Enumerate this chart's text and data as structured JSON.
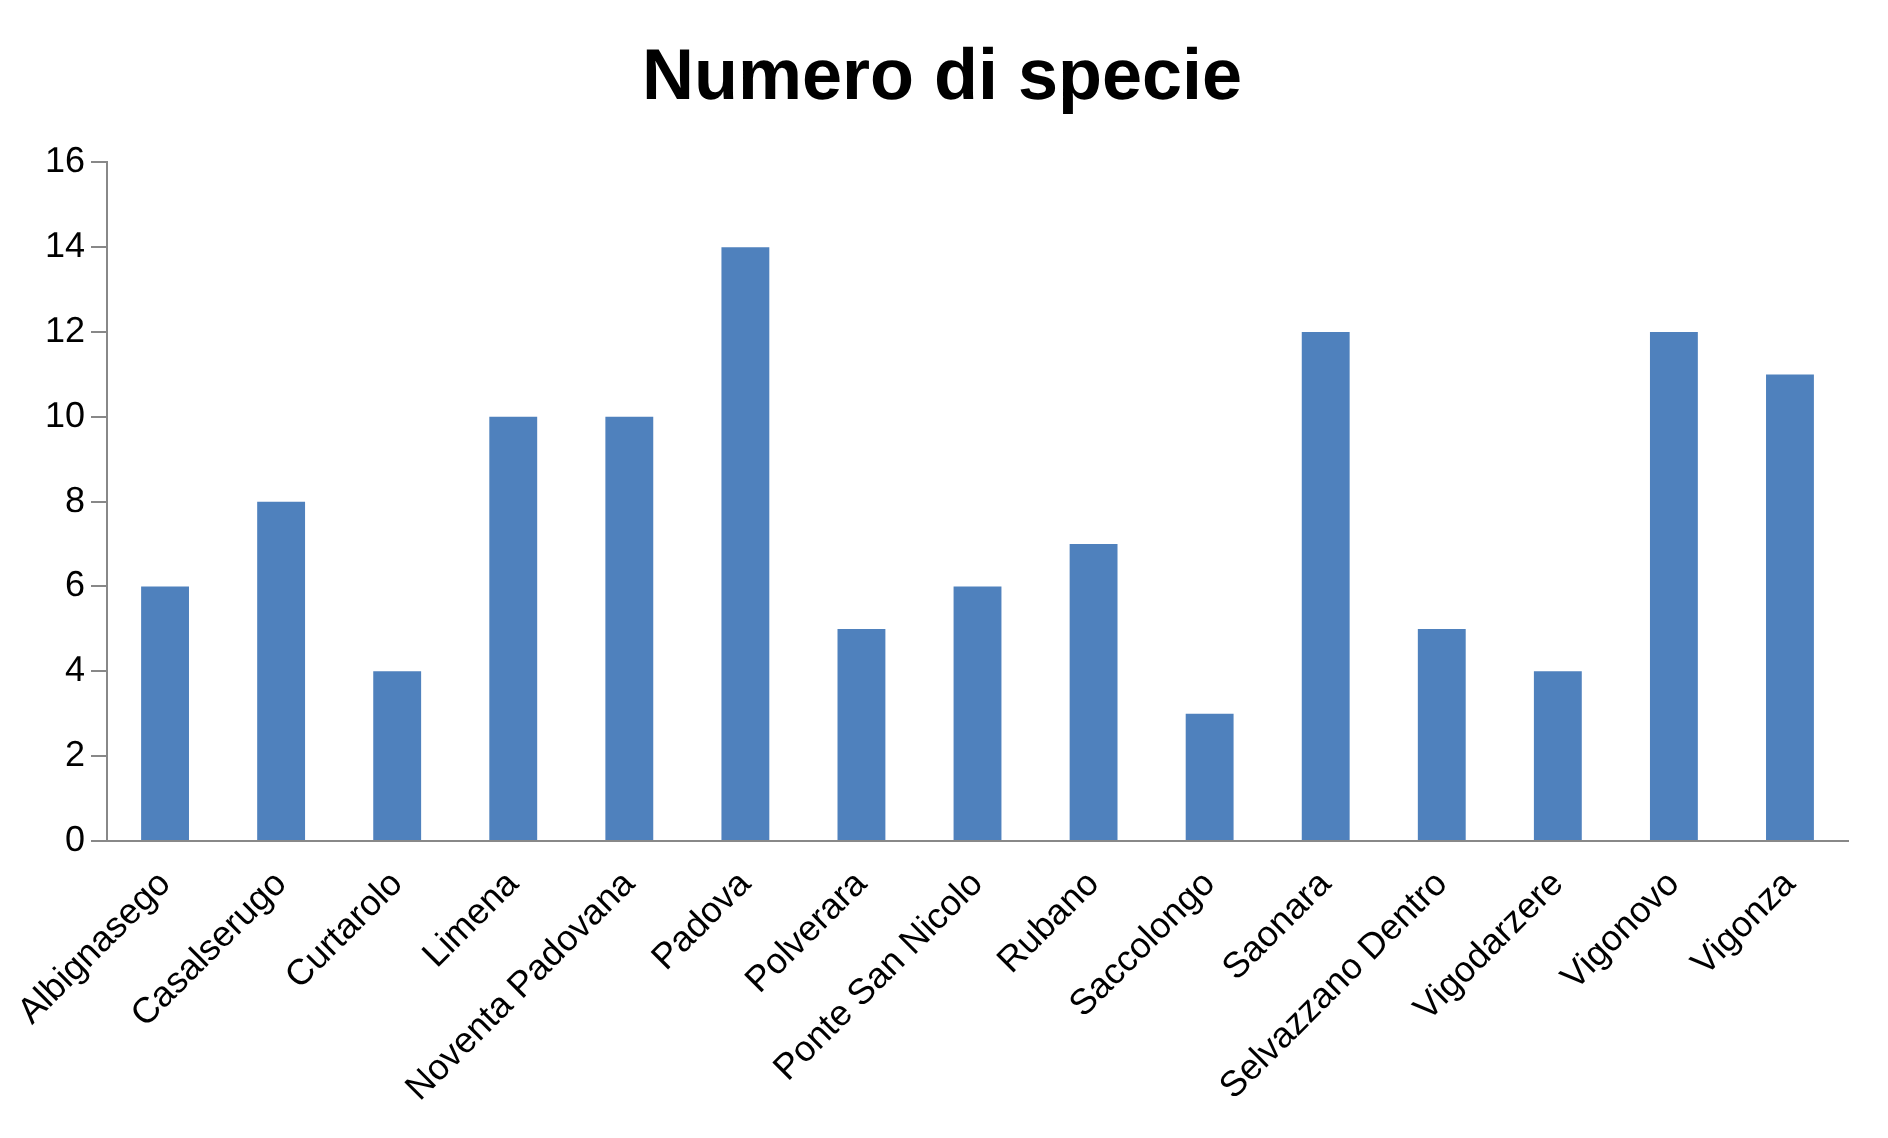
{
  "chart_data": {
    "type": "bar",
    "title": "Numero di specie",
    "categories": [
      "Albignasego",
      "Casalserugo",
      "Curtarolo",
      "Limena",
      "Noventa Padovana",
      "Padova",
      "Polverara",
      "Ponte San Nicolo",
      "Rubano",
      "Saccolongo",
      "Saonara",
      "Selvazzano Dentro",
      "Vigodarzere",
      "Vigonovo",
      "Vigonza"
    ],
    "values": [
      6,
      8,
      4,
      10,
      10,
      14,
      5,
      6,
      7,
      3,
      12,
      5,
      4,
      12,
      11
    ],
    "color": "#4f81bd",
    "ylim": [
      0,
      16
    ],
    "yticks": [
      0,
      2,
      4,
      6,
      8,
      10,
      12,
      14,
      16
    ],
    "grid": false,
    "legend": false
  }
}
